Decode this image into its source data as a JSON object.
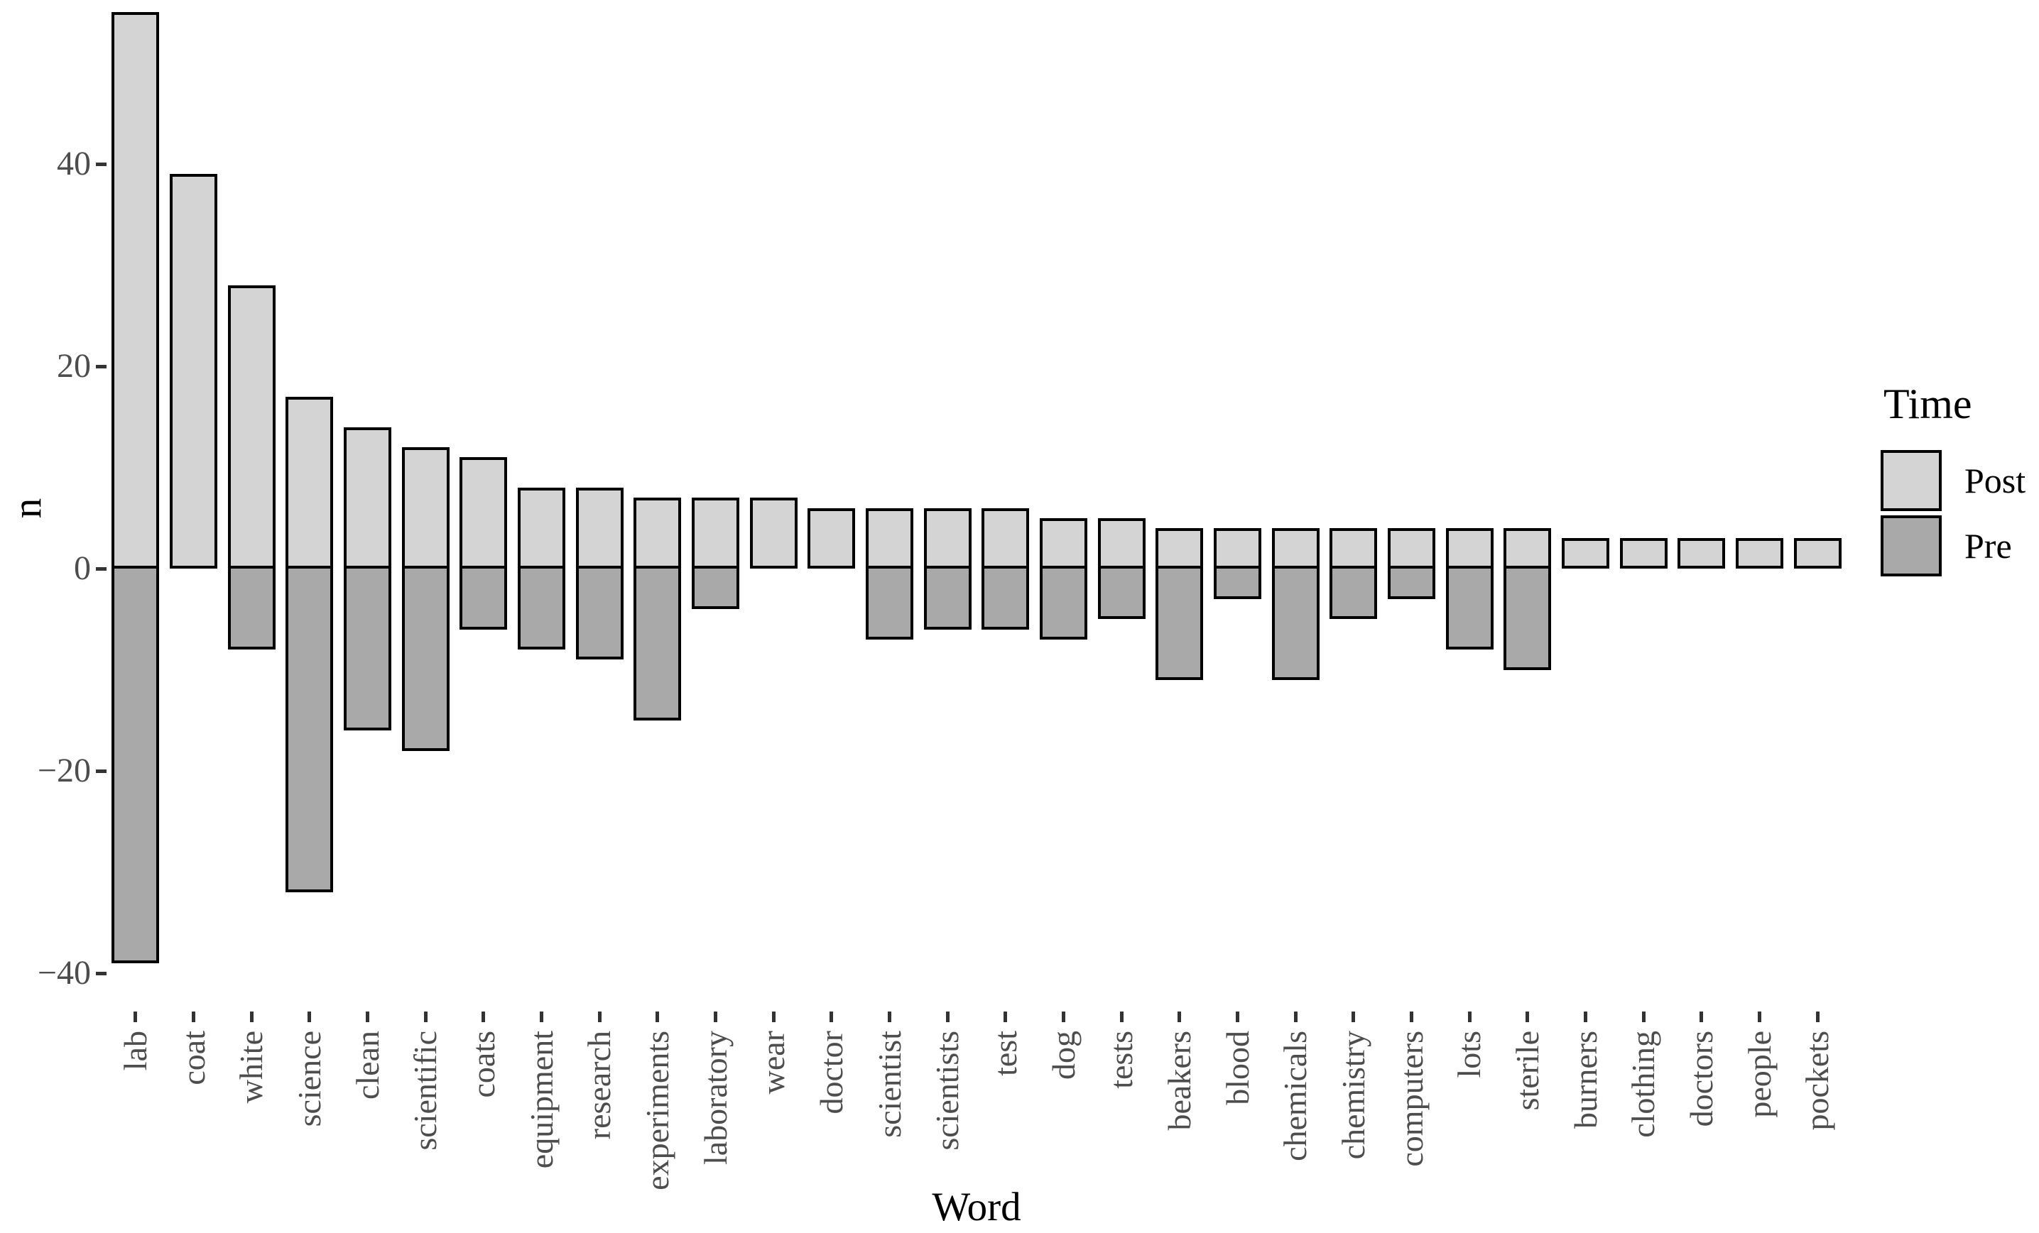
{
  "axes": {
    "y_title": "n",
    "x_title": "Word",
    "y_ticks": [
      {
        "label": "40",
        "value": 40
      },
      {
        "label": "20",
        "value": 20
      },
      {
        "label": "0",
        "value": 0
      },
      {
        "label": "−20",
        "value": -20
      },
      {
        "label": "−40",
        "value": -40
      }
    ]
  },
  "legend": {
    "title": "Time",
    "entries": [
      {
        "label": "Post",
        "color": "#d4d4d4"
      },
      {
        "label": "Pre",
        "color": "#a9a9a9"
      }
    ]
  },
  "style": {
    "post_fill": "#d4d4d4",
    "pre_fill": "#a9a9a9",
    "bar_border": "#000000",
    "tick_color": "#333333",
    "tick_label_color": "#4d4d4d",
    "background": "#ffffff"
  },
  "chart_data": {
    "type": "bar",
    "subtype": "diverging-stacked-vertical",
    "title": "",
    "xlabel": "Word",
    "ylabel": "n",
    "ylim": [
      -44,
      59
    ],
    "grid": false,
    "legend_position": "right",
    "categories": [
      "lab",
      "coat",
      "white",
      "science",
      "clean",
      "scientific",
      "coats",
      "equipment",
      "research",
      "experiments",
      "laboratory",
      "wear",
      "doctor",
      "scientist",
      "scientists",
      "test",
      "dog",
      "tests",
      "beakers",
      "blood",
      "chemicals",
      "chemistry",
      "computers",
      "lots",
      "sterile",
      "burners",
      "clothing",
      "doctors",
      "people",
      "pockets"
    ],
    "series": [
      {
        "name": "Post",
        "color": "#d4d4d4",
        "values": [
          55,
          39,
          28,
          17,
          14,
          12,
          11,
          8,
          8,
          7,
          7,
          7,
          6,
          6,
          6,
          6,
          5,
          5,
          4,
          4,
          4,
          4,
          4,
          4,
          4,
          3,
          3,
          3,
          3,
          3
        ]
      },
      {
        "name": "Pre",
        "color": "#a9a9a9",
        "values": [
          -39,
          0,
          -8,
          -32,
          -16,
          -18,
          -6,
          -8,
          -9,
          -15,
          -4,
          0,
          0,
          -7,
          -6,
          -6,
          -7,
          -5,
          -11,
          -3,
          -11,
          -5,
          -3,
          -8,
          -10,
          0,
          0,
          0,
          0,
          0
        ]
      }
    ]
  }
}
